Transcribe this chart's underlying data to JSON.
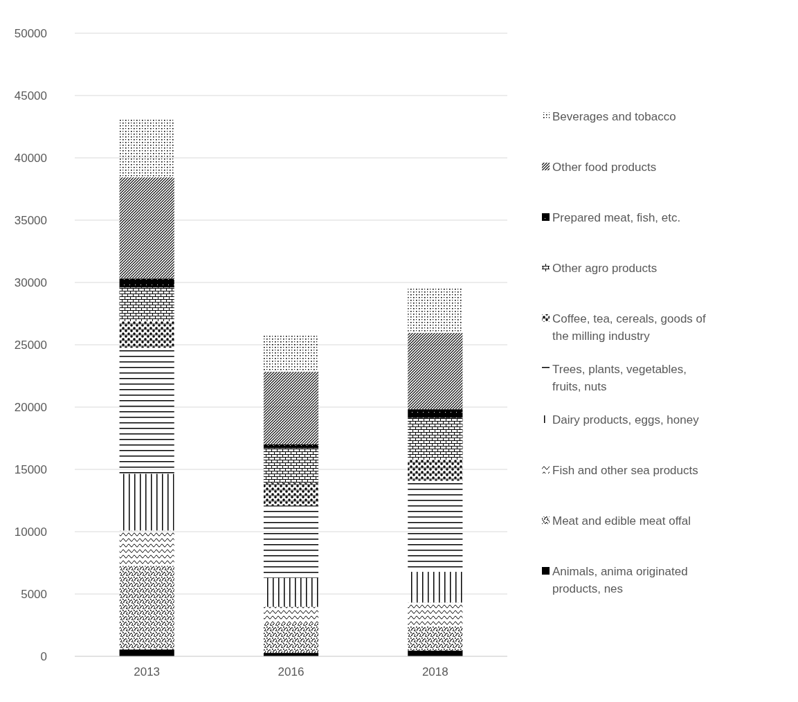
{
  "chart_data": {
    "type": "bar",
    "stacked": true,
    "categories": [
      "2013",
      "2016",
      "2018"
    ],
    "ylim": [
      0,
      50000
    ],
    "yticks": [
      0,
      5000,
      10000,
      15000,
      20000,
      25000,
      30000,
      35000,
      40000,
      45000,
      50000
    ],
    "grid": "y",
    "legend": "right",
    "series": [
      {
        "name": "Animals, anima originated products, nes",
        "color": "#000000",
        "values": [
          540,
          270,
          450
        ]
      },
      {
        "name": "Meat and edible meat offal",
        "color": "#000000",
        "values": [
          6700,
          2350,
          1990
        ]
      },
      {
        "name": "Fish and other sea products",
        "color": "#000000",
        "values": [
          2850,
          1350,
          1870
        ]
      },
      {
        "name": "Dairy products, eggs, honey",
        "color": "#000000",
        "values": [
          4550,
          2330,
          2470
        ]
      },
      {
        "name": "Trees, plants, vegetables, fruits, nuts",
        "color": "#000000",
        "values": [
          10120,
          5790,
          7310
        ]
      },
      {
        "name": "Coffee, tea, cereals, goods of the milling industry",
        "color": "#000000",
        "values": [
          2130,
          1810,
          1680
        ]
      },
      {
        "name": "Other agro products",
        "color": "#000000",
        "values": [
          2710,
          2800,
          3360
        ]
      },
      {
        "name": "Prepared meat, fish, etc.",
        "color": "#000000",
        "values": [
          710,
          300,
          690
        ]
      },
      {
        "name": "Other food products",
        "color": "#000000",
        "values": [
          8120,
          5830,
          6130
        ]
      },
      {
        "name": "Beverages and tobacco",
        "color": "#000000",
        "values": [
          4700,
          2980,
          3650
        ]
      }
    ]
  }
}
